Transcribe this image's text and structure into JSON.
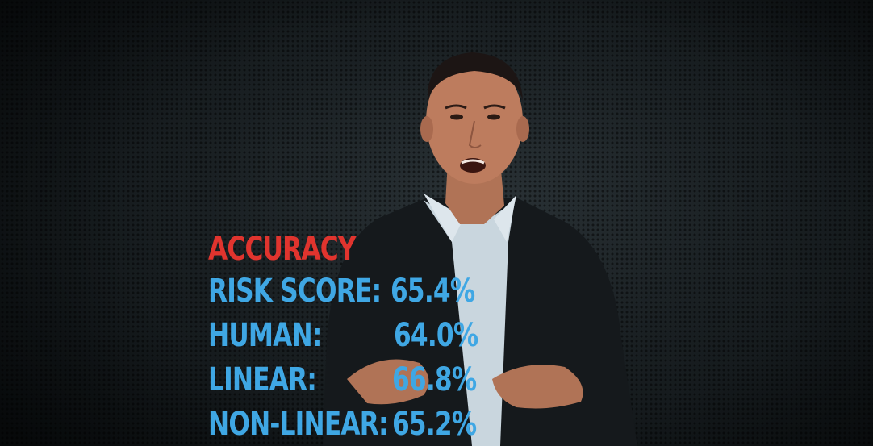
{
  "overlay": {
    "heading": "ACCURACY",
    "rows": [
      {
        "label": "RISK SCORE:",
        "value": "65.4%"
      },
      {
        "label": "HUMAN:",
        "value": "64.0%"
      },
      {
        "label": "LINEAR:",
        "value": "66.8%"
      },
      {
        "label": "NON-LINEAR:",
        "value": "65.2%"
      }
    ],
    "heading_color": "#e0342e",
    "text_color": "#3fa7e4"
  }
}
